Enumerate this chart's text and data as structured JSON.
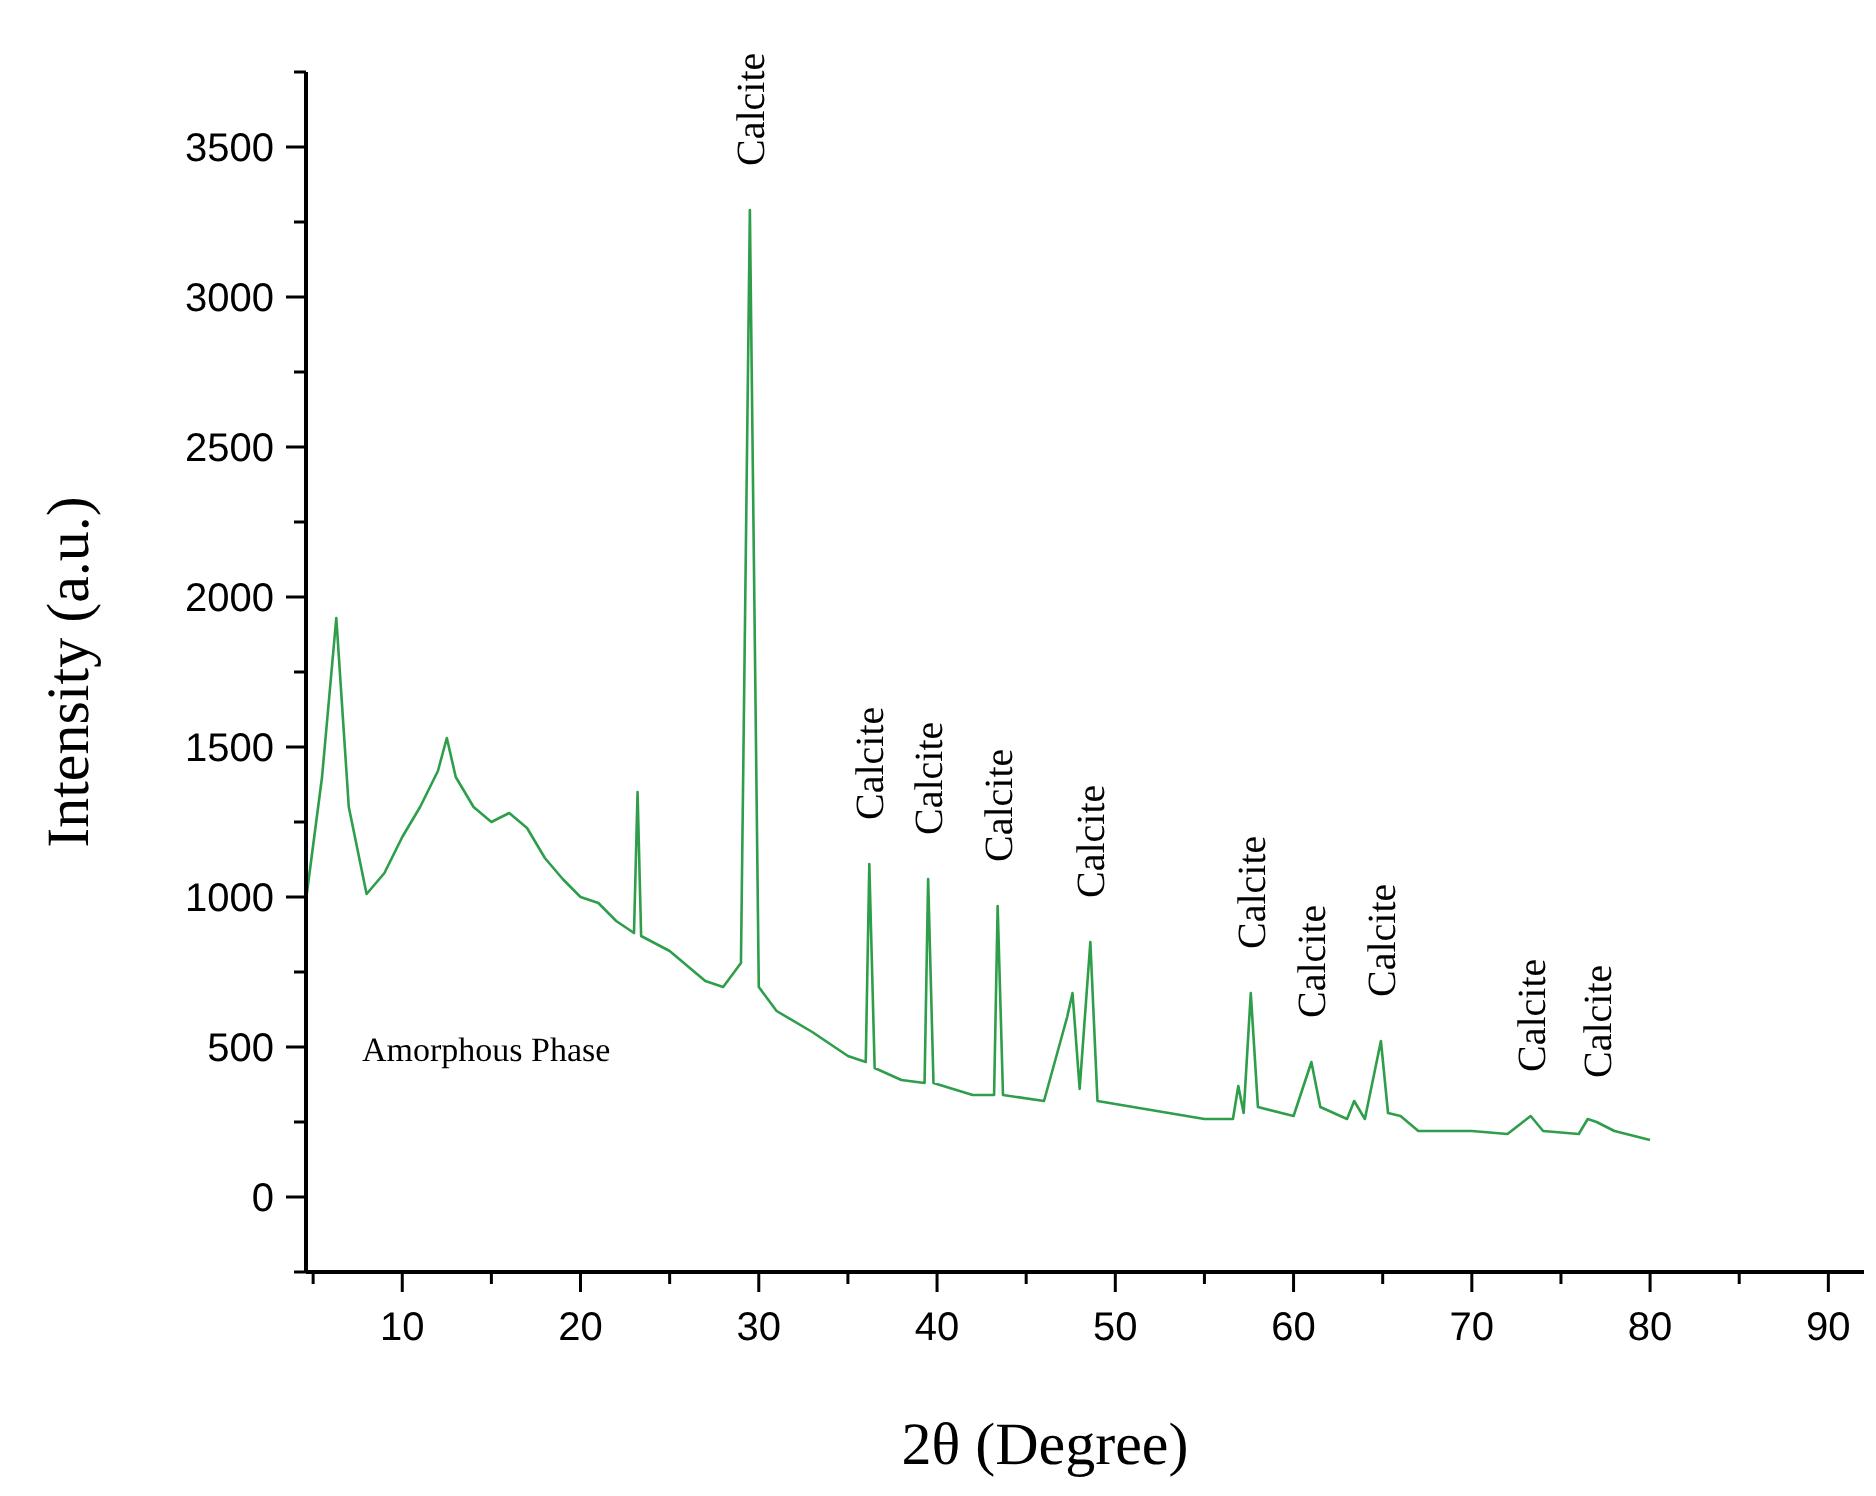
{
  "chart_data": {
    "type": "line",
    "xlabel": "2θ (Degree)",
    "ylabel": "Intensity (a.u.)",
    "xlim": [
      4.6,
      92
    ],
    "ylim": [
      -250,
      3750
    ],
    "xticks": [
      {
        "value": 5,
        "label": null
      },
      10,
      {
        "value": 15,
        "label": null
      },
      20,
      {
        "value": 25,
        "label": null
      },
      30,
      {
        "value": 35,
        "label": null
      },
      40,
      {
        "value": 45,
        "label": null
      },
      50,
      {
        "value": 55,
        "label": null
      },
      60,
      {
        "value": 65,
        "label": null
      },
      70,
      {
        "value": 75,
        "label": null
      },
      80,
      {
        "value": 85,
        "label": null
      },
      90
    ],
    "yticks": [
      {
        "value": -250,
        "label": null
      },
      0,
      {
        "value": 250,
        "label": null
      },
      500,
      {
        "value": 750,
        "label": null
      },
      1000,
      {
        "value": 1250,
        "label": null
      },
      1500,
      {
        "value": 1750,
        "label": null
      },
      2000,
      {
        "value": 2250,
        "label": null
      },
      2500,
      {
        "value": 2750,
        "label": null
      },
      3000,
      {
        "value": 3250,
        "label": null
      },
      3500,
      {
        "value": 3750,
        "label": null
      }
    ],
    "grid": false,
    "marker": "none",
    "line_style": "solid",
    "series": [
      {
        "color": "#2e9e4a",
        "x": [
          4.6,
          5.5,
          6.3,
          7,
          8,
          9,
          10,
          11,
          12,
          12.5,
          13,
          14,
          15,
          16,
          17,
          18,
          19,
          20,
          21,
          22,
          23,
          23.2,
          23.4,
          25,
          27,
          28,
          29,
          29.5,
          30,
          31,
          33,
          35,
          36,
          36.2,
          36.5,
          38,
          39.3,
          39.5,
          39.8,
          42,
          43.2,
          43.4,
          43.7,
          46,
          47.3,
          47.6,
          48,
          48.6,
          49,
          52,
          55,
          56.6,
          56.9,
          57.2,
          57.6,
          58,
          60,
          61,
          61.5,
          63,
          63.4,
          64,
          64.9,
          65.3,
          66,
          67,
          70,
          72,
          73.3,
          74,
          76,
          76.5,
          77,
          78,
          80
        ],
        "values": [
          990,
          1400,
          1930,
          1300,
          1010,
          1080,
          1200,
          1300,
          1420,
          1530,
          1400,
          1300,
          1250,
          1280,
          1230,
          1130,
          1060,
          1000,
          980,
          920,
          880,
          1350,
          870,
          820,
          720,
          700,
          780,
          3290,
          700,
          620,
          550,
          470,
          450,
          1110,
          430,
          390,
          380,
          1060,
          380,
          340,
          340,
          970,
          340,
          320,
          600,
          680,
          360,
          850,
          320,
          290,
          260,
          260,
          370,
          280,
          680,
          300,
          270,
          450,
          300,
          260,
          320,
          260,
          520,
          280,
          270,
          220,
          220,
          210,
          270,
          220,
          210,
          260,
          250,
          220,
          190
        ]
      }
    ],
    "annotations": [
      {
        "text": "Calcite",
        "x": 29.5,
        "y": 3290
      },
      {
        "text": "Calcite",
        "x": 36.2,
        "y": 1110
      },
      {
        "text": "Calcite",
        "x": 39.5,
        "y": 1060
      },
      {
        "text": "Calcite",
        "x": 43.4,
        "y": 970
      },
      {
        "text": "Calcite",
        "x": 48.6,
        "y": 850
      },
      {
        "text": "Calcite",
        "x": 57.6,
        "y": 680
      },
      {
        "text": "Calcite",
        "x": 61,
        "y": 450
      },
      {
        "text": "Calcite",
        "x": 64.9,
        "y": 520
      },
      {
        "text": "Calcite",
        "x": 73.3,
        "y": 270
      },
      {
        "text": "Calcite",
        "x": 77,
        "y": 250
      },
      "Amorphous Phase"
    ]
  }
}
